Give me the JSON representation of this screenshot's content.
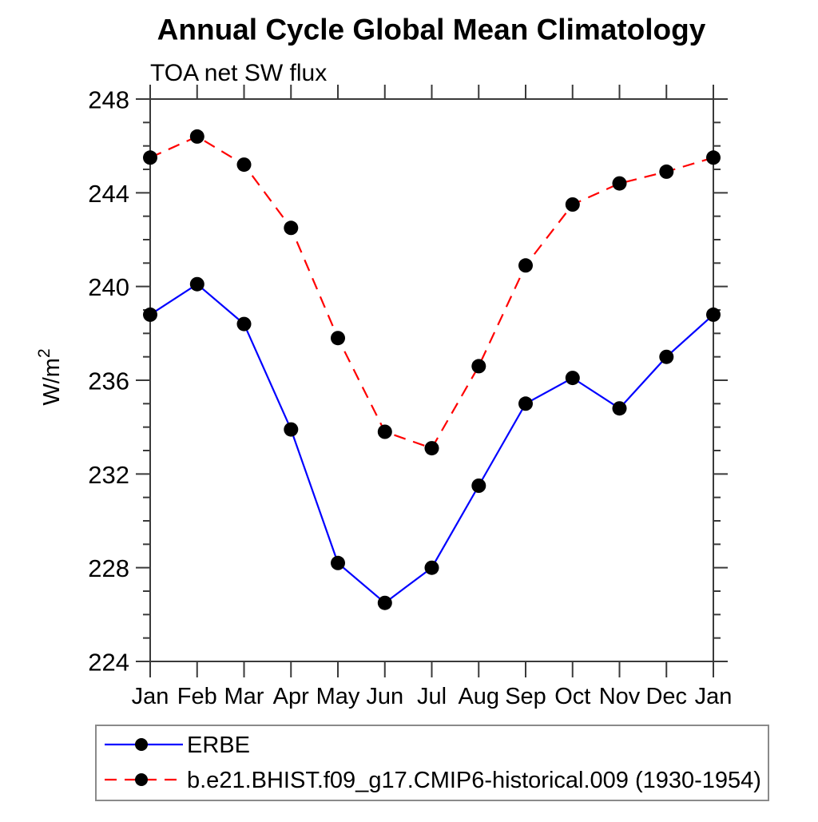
{
  "chart_data": {
    "type": "line",
    "title": "Annual Cycle Global Mean Climatology",
    "subtitle": "TOA net SW flux",
    "ylabel_base": "W/m",
    "ylabel_sup": "2",
    "categories": [
      "Jan",
      "Feb",
      "Mar",
      "Apr",
      "May",
      "Jun",
      "Jul",
      "Aug",
      "Sep",
      "Oct",
      "Nov",
      "Dec",
      "Jan"
    ],
    "ylim": [
      224,
      248
    ],
    "ytick_major": [
      224,
      228,
      232,
      236,
      240,
      244,
      248
    ],
    "ytick_minor_step": 1,
    "grid": false,
    "legend_position": "bottom-left",
    "frame_color": "#3a3a3a",
    "text_color": "#000000",
    "series": [
      {
        "name": "ERBE",
        "color": "#0000ff",
        "line_style": "solid",
        "marker": "filled-circle",
        "marker_color": "#000000",
        "values": [
          238.8,
          240.1,
          238.4,
          233.9,
          228.2,
          226.5,
          228.0,
          231.5,
          235.0,
          236.1,
          234.8,
          237.0,
          238.8
        ]
      },
      {
        "name": "b.e21.BHIST.f09_g17.CMIP6-historical.009 (1930-1954)",
        "color": "#ff0000",
        "line_style": "dashed",
        "marker": "filled-circle",
        "marker_color": "#000000",
        "values": [
          245.5,
          246.4,
          245.2,
          242.5,
          237.8,
          233.8,
          233.1,
          236.6,
          240.9,
          243.5,
          244.4,
          244.9,
          245.5
        ]
      }
    ]
  }
}
